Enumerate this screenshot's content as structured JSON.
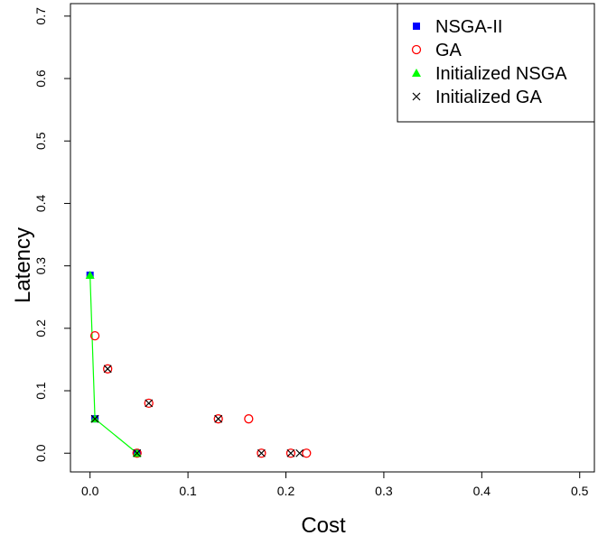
{
  "chart_data": {
    "type": "scatter",
    "xlabel": "Cost",
    "ylabel": "Latency",
    "xlim": [
      -0.02,
      0.515
    ],
    "ylim": [
      -0.03,
      0.72
    ],
    "xticks": [
      0.0,
      0.1,
      0.2,
      0.3,
      0.4,
      0.5
    ],
    "xtick_labels": [
      "0.0",
      "0.1",
      "0.2",
      "0.3",
      "0.4",
      "0.5"
    ],
    "yticks": [
      0.0,
      0.1,
      0.2,
      0.3,
      0.4,
      0.5,
      0.6,
      0.7
    ],
    "ytick_labels": [
      "0.0",
      "0.1",
      "0.2",
      "0.3",
      "0.4",
      "0.5",
      "0.6",
      "0.7"
    ],
    "grid": false,
    "legend_position": "top-right",
    "series": [
      {
        "name": "NSGA-II",
        "marker": "square",
        "color": "#0000ff",
        "x": [
          0.0,
          0.005,
          0.048
        ],
        "y": [
          0.285,
          0.055,
          0.0
        ]
      },
      {
        "name": "GA",
        "marker": "circle",
        "color": "#ff0000",
        "x": [
          0.005,
          0.018,
          0.06,
          0.131,
          0.162,
          0.175,
          0.205,
          0.221,
          0.048
        ],
        "y": [
          0.188,
          0.135,
          0.08,
          0.055,
          0.055,
          0.0,
          0.0,
          0.0,
          0.0
        ]
      },
      {
        "name": "Initialized NSGA",
        "marker": "triangle",
        "color": "#00ff00",
        "line": true,
        "x": [
          0.0,
          0.005,
          0.048
        ],
        "y": [
          0.285,
          0.055,
          0.0
        ]
      },
      {
        "name": "Initialized GA",
        "marker": "x",
        "color": "#000000",
        "x": [
          0.005,
          0.018,
          0.06,
          0.131,
          0.175,
          0.205,
          0.214,
          0.048
        ],
        "y": [
          0.055,
          0.135,
          0.08,
          0.055,
          0.0,
          0.0,
          0.0,
          0.0
        ]
      }
    ]
  }
}
